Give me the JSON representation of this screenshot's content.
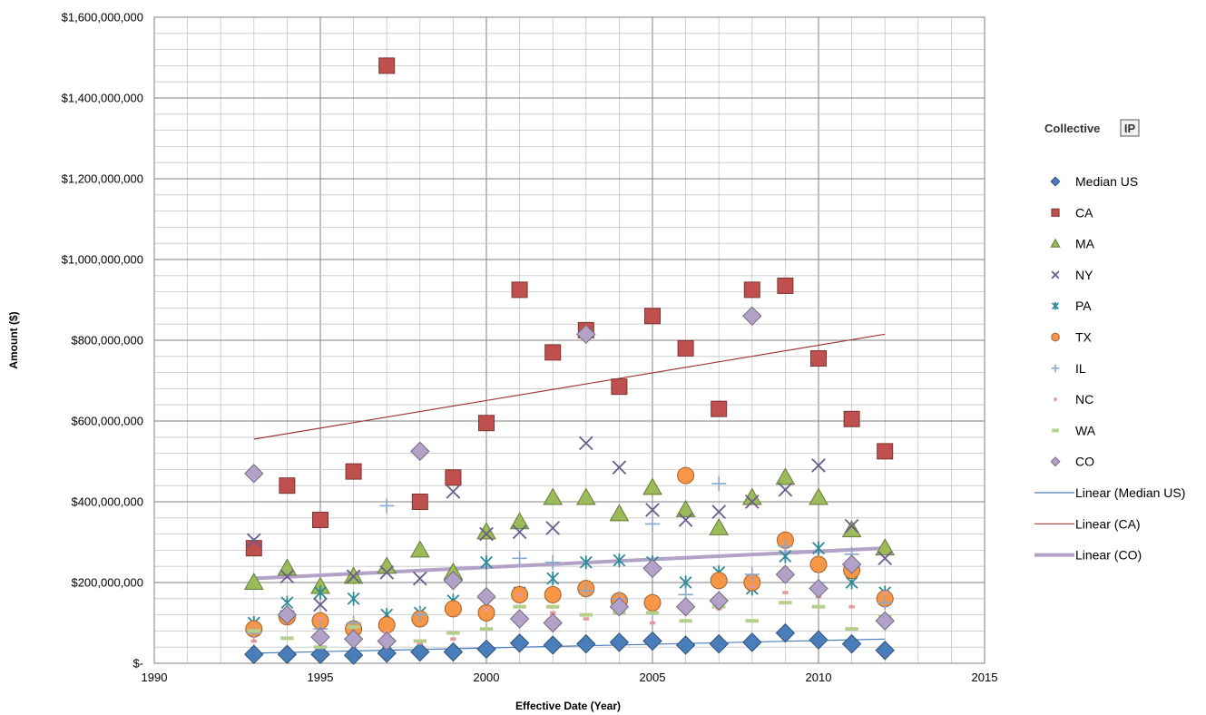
{
  "chart_data": {
    "type": "scatter",
    "title": "",
    "xlabel": "Effective Date (Year)",
    "ylabel": "Amount ($)",
    "xlim": [
      1990,
      2015
    ],
    "ylim": [
      0,
      1600000000
    ],
    "x_ticks": [
      1990,
      1995,
      2000,
      2005,
      2010,
      2015
    ],
    "x_tick_labels": [
      "1990",
      "1995",
      "2000",
      "2005",
      "2010",
      "2015"
    ],
    "y_ticks": [
      0,
      200000000,
      400000000,
      600000000,
      800000000,
      1000000000,
      1200000000,
      1400000000,
      1600000000
    ],
    "y_tick_labels": [
      "$-",
      "$200,000,000",
      "$400,000,000",
      "$600,000,000",
      "$800,000,000",
      "$1,000,000,000",
      "$1,200,000,000",
      "$1,400,000,000",
      "$1,600,000,000"
    ],
    "grid": true,
    "legend_position": "right",
    "logo": "Collective IP",
    "x": [
      1993,
      1994,
      1995,
      1996,
      1997,
      1998,
      1999,
      2000,
      2001,
      2002,
      2003,
      2004,
      2005,
      2006,
      2007,
      2008,
      2009,
      2010,
      2011,
      2012
    ],
    "series": [
      {
        "name": "Median US",
        "marker": "diamond",
        "color": "#4a7ebb",
        "values": [
          22000000,
          22000000,
          22000000,
          20000000,
          25000000,
          28000000,
          28000000,
          35000000,
          50000000,
          45000000,
          48000000,
          52000000,
          55000000,
          45000000,
          48000000,
          52000000,
          75000000,
          58000000,
          48000000,
          32000000
        ]
      },
      {
        "name": "CA",
        "marker": "square",
        "color": "#c0504d",
        "values": [
          285000000,
          440000000,
          355000000,
          475000000,
          1480000000,
          400000000,
          460000000,
          595000000,
          925000000,
          770000000,
          825000000,
          685000000,
          860000000,
          780000000,
          630000000,
          925000000,
          935000000,
          755000000,
          605000000,
          525000000
        ]
      },
      {
        "name": "MA",
        "marker": "triangle",
        "color": "#9bbb59",
        "values": [
          200000000,
          235000000,
          190000000,
          215000000,
          240000000,
          280000000,
          225000000,
          325000000,
          350000000,
          410000000,
          410000000,
          370000000,
          435000000,
          380000000,
          335000000,
          410000000,
          460000000,
          410000000,
          330000000,
          285000000
        ]
      },
      {
        "name": "NY",
        "marker": "x",
        "color": "#6b5b8e",
        "values": [
          305000000,
          215000000,
          145000000,
          215000000,
          225000000,
          210000000,
          425000000,
          320000000,
          325000000,
          335000000,
          545000000,
          485000000,
          380000000,
          355000000,
          375000000,
          400000000,
          430000000,
          490000000,
          340000000,
          260000000
        ]
      },
      {
        "name": "PA",
        "marker": "asterisk",
        "color": "#2e8a97",
        "values": [
          100000000,
          150000000,
          175000000,
          160000000,
          120000000,
          125000000,
          155000000,
          250000000,
          175000000,
          210000000,
          250000000,
          255000000,
          250000000,
          200000000,
          225000000,
          185000000,
          265000000,
          285000000,
          200000000,
          175000000
        ]
      },
      {
        "name": "TX",
        "marker": "circle",
        "color": "#f79646",
        "values": [
          85000000,
          115000000,
          105000000,
          85000000,
          95000000,
          110000000,
          135000000,
          125000000,
          170000000,
          170000000,
          185000000,
          155000000,
          150000000,
          465000000,
          205000000,
          200000000,
          305000000,
          245000000,
          230000000,
          160000000
        ]
      },
      {
        "name": "IL",
        "marker": "plus",
        "color": "#8aa8cc",
        "values": [
          75000000,
          130000000,
          85000000,
          100000000,
          390000000,
          120000000,
          200000000,
          160000000,
          260000000,
          250000000,
          180000000,
          160000000,
          345000000,
          170000000,
          445000000,
          220000000,
          290000000,
          200000000,
          270000000,
          150000000
        ]
      },
      {
        "name": "NC",
        "marker": "dash",
        "color": "#e6999b",
        "values": [
          55000000,
          115000000,
          110000000,
          75000000,
          75000000,
          50000000,
          60000000,
          135000000,
          170000000,
          125000000,
          110000000,
          160000000,
          100000000,
          150000000,
          135000000,
          190000000,
          175000000,
          165000000,
          140000000,
          175000000
        ]
      },
      {
        "name": "WA",
        "marker": "longdash",
        "color": "#b4cf8b",
        "values": [
          80000000,
          62000000,
          40000000,
          90000000,
          55000000,
          55000000,
          75000000,
          85000000,
          140000000,
          140000000,
          120000000,
          125000000,
          125000000,
          105000000,
          140000000,
          105000000,
          150000000,
          140000000,
          85000000,
          115000000
        ]
      },
      {
        "name": "CO",
        "marker": "diamond",
        "color": "#b3a2c7",
        "values": [
          470000000,
          120000000,
          65000000,
          60000000,
          55000000,
          525000000,
          205000000,
          165000000,
          110000000,
          100000000,
          815000000,
          140000000,
          235000000,
          140000000,
          155000000,
          860000000,
          220000000,
          185000000,
          245000000,
          105000000
        ]
      }
    ],
    "trendlines": [
      {
        "name": "Linear (Median US)",
        "color": "#4a7ebb",
        "width": 1.2,
        "x": [
          1993,
          2012
        ],
        "y": [
          25000000,
          60000000
        ]
      },
      {
        "name": "Linear (CA)",
        "color": "#9e3b38",
        "width": 1.2,
        "x": [
          1993,
          2012
        ],
        "y": [
          555000000,
          815000000
        ]
      },
      {
        "name": "Linear (CO)",
        "color": "#b3a2c7",
        "width": 4,
        "x": [
          1993,
          2012
        ],
        "y": [
          210000000,
          285000000
        ]
      }
    ]
  }
}
